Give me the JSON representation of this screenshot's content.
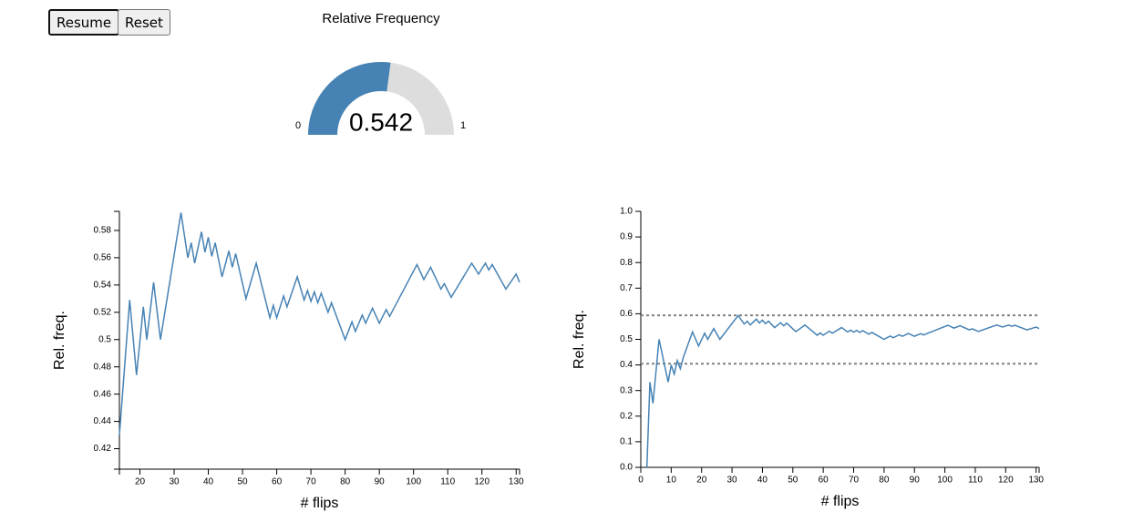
{
  "controls": {
    "buttons": [
      "Resume",
      "Reset"
    ]
  },
  "chart_data": [
    {
      "type": "gauge",
      "title": "Relative Frequency",
      "value": 0.542,
      "min": 0,
      "max": 1,
      "color": "#4682b4",
      "track_color": "#dddddd"
    },
    {
      "type": "line",
      "xlabel": "# flips",
      "ylabel": "Rel. freq.",
      "color": "#4682b4",
      "x": [
        14,
        17,
        19,
        21,
        22,
        24,
        26,
        32,
        34,
        35,
        36,
        38,
        39,
        40,
        41,
        42,
        44,
        46,
        47,
        48,
        51,
        54,
        58,
        59,
        60,
        62,
        63,
        66,
        68,
        69,
        70,
        71,
        72,
        73,
        75,
        76,
        80,
        82,
        83,
        85,
        86,
        88,
        90,
        92,
        93,
        101,
        103,
        105,
        108,
        109,
        111,
        117,
        119,
        121,
        122,
        123,
        127,
        130,
        131
      ],
      "values": [
        0.43,
        0.529,
        0.474,
        0.524,
        0.5,
        0.542,
        0.5,
        0.593,
        0.56,
        0.571,
        0.556,
        0.579,
        0.564,
        0.575,
        0.561,
        0.571,
        0.546,
        0.565,
        0.553,
        0.563,
        0.53,
        0.556,
        0.516,
        0.525,
        0.516,
        0.532,
        0.524,
        0.546,
        0.529,
        0.536,
        0.528,
        0.535,
        0.527,
        0.534,
        0.52,
        0.527,
        0.5,
        0.513,
        0.506,
        0.518,
        0.512,
        0.523,
        0.512,
        0.522,
        0.517,
        0.555,
        0.544,
        0.553,
        0.537,
        0.541,
        0.531,
        0.556,
        0.548,
        0.556,
        0.551,
        0.555,
        0.537,
        0.548,
        0.542
      ],
      "xlim": [
        14,
        131
      ],
      "ylim": [
        0.405,
        0.594
      ],
      "xticks": [
        20,
        30,
        40,
        50,
        60,
        70,
        80,
        90,
        100,
        110,
        120,
        130
      ],
      "yticks": [
        0.42,
        0.44,
        0.46,
        0.48,
        0.5,
        0.52,
        0.54,
        0.56,
        0.58
      ]
    },
    {
      "type": "line",
      "xlabel": "# flips",
      "ylabel": "Rel. freq.",
      "color": "#4682b4",
      "x": [
        2,
        3,
        4,
        6,
        9,
        10,
        11,
        12,
        13,
        14,
        17,
        19,
        21,
        22,
        24,
        26,
        32,
        34,
        35,
        36,
        38,
        39,
        40,
        41,
        42,
        44,
        46,
        47,
        48,
        51,
        54,
        58,
        59,
        60,
        62,
        63,
        66,
        68,
        69,
        70,
        71,
        72,
        73,
        75,
        76,
        80,
        82,
        83,
        85,
        86,
        88,
        90,
        92,
        93,
        101,
        103,
        105,
        108,
        109,
        111,
        117,
        119,
        121,
        122,
        123,
        127,
        130,
        131
      ],
      "values": [
        0,
        0.333,
        0.25,
        0.5,
        0.333,
        0.4,
        0.364,
        0.417,
        0.385,
        0.43,
        0.529,
        0.474,
        0.524,
        0.5,
        0.542,
        0.5,
        0.593,
        0.56,
        0.571,
        0.556,
        0.579,
        0.564,
        0.575,
        0.561,
        0.571,
        0.546,
        0.565,
        0.553,
        0.563,
        0.53,
        0.556,
        0.516,
        0.525,
        0.516,
        0.532,
        0.524,
        0.546,
        0.529,
        0.536,
        0.528,
        0.535,
        0.527,
        0.534,
        0.52,
        0.527,
        0.5,
        0.513,
        0.506,
        0.518,
        0.512,
        0.523,
        0.512,
        0.522,
        0.517,
        0.555,
        0.544,
        0.553,
        0.537,
        0.541,
        0.531,
        0.556,
        0.548,
        0.556,
        0.551,
        0.555,
        0.537,
        0.548,
        0.542
      ],
      "xlim": [
        0,
        131
      ],
      "ylim": [
        0,
        1
      ],
      "xticks": [
        0,
        10,
        20,
        30,
        40,
        50,
        60,
        70,
        80,
        90,
        100,
        110,
        120,
        130
      ],
      "yticks": [
        {
          "value": 0,
          "label": "0.0"
        },
        0.1,
        0.2,
        0.3,
        0.4,
        0.5,
        0.6,
        0.7,
        0.8,
        0.9,
        {
          "value": 1,
          "label": "1.0"
        }
      ],
      "reference_lines": [
        0.594,
        0.405
      ],
      "reference_color": "#808080"
    }
  ]
}
